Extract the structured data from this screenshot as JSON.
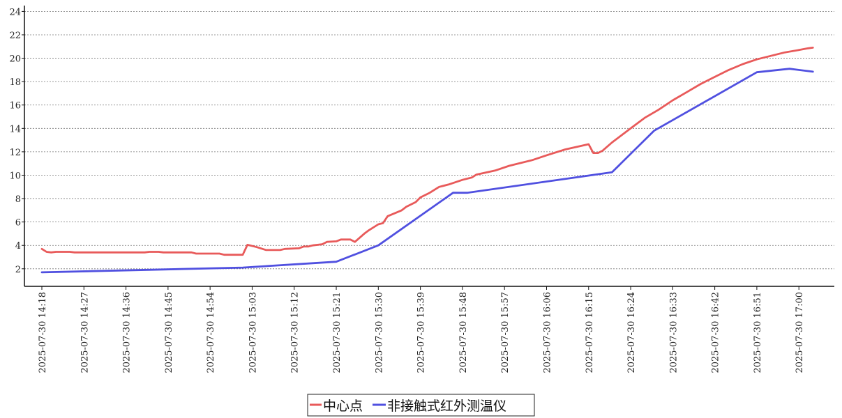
{
  "chart_data": {
    "type": "line",
    "title": "",
    "xlabel": "",
    "ylabel": "",
    "ylim": [
      0.5,
      24.5
    ],
    "y_ticks": [
      2,
      4,
      6,
      8,
      10,
      12,
      14,
      16,
      18,
      20,
      22,
      24
    ],
    "x_range": [
      "2025-07-30 14:18",
      "2025-07-30 17:04"
    ],
    "x_tick_labels": [
      "2025-07-30 14:18",
      "2025-07-30 14:27",
      "2025-07-30 14:36",
      "2025-07-30 14:45",
      "2025-07-30 14:54",
      "2025-07-30 15:03",
      "2025-07-30 15:12",
      "2025-07-30 15:21",
      "2025-07-30 15:30",
      "2025-07-30 15:39",
      "2025-07-30 15:48",
      "2025-07-30 15:57",
      "2025-07-30 16:06",
      "2025-07-30 16:15",
      "2025-07-30 16:24",
      "2025-07-30 16:33",
      "2025-07-30 16:42",
      "2025-07-30 16:51",
      "2025-07-30 17:00"
    ],
    "grid": "horizontal dashed",
    "legend_position": "bottom-center",
    "series": [
      {
        "name": "中心点",
        "color": "#e85a5a",
        "points": [
          [
            "2025-07-30 14:18",
            3.7
          ],
          [
            "2025-07-30 14:19",
            3.45
          ],
          [
            "2025-07-30 14:20",
            3.4
          ],
          [
            "2025-07-30 14:21",
            3.45
          ],
          [
            "2025-07-30 14:24",
            3.45
          ],
          [
            "2025-07-30 14:25",
            3.4
          ],
          [
            "2025-07-30 14:30",
            3.4
          ],
          [
            "2025-07-30 14:40",
            3.4
          ],
          [
            "2025-07-30 14:41",
            3.45
          ],
          [
            "2025-07-30 14:43",
            3.45
          ],
          [
            "2025-07-30 14:44",
            3.4
          ],
          [
            "2025-07-30 14:50",
            3.4
          ],
          [
            "2025-07-30 14:51",
            3.3
          ],
          [
            "2025-07-30 14:56",
            3.3
          ],
          [
            "2025-07-30 14:57",
            3.2
          ],
          [
            "2025-07-30 15:01",
            3.2
          ],
          [
            "2025-07-30 15:02",
            4.05
          ],
          [
            "2025-07-30 15:04",
            3.85
          ],
          [
            "2025-07-30 15:06",
            3.6
          ],
          [
            "2025-07-30 15:09",
            3.6
          ],
          [
            "2025-07-30 15:10",
            3.7
          ],
          [
            "2025-07-30 15:13",
            3.75
          ],
          [
            "2025-07-30 15:14",
            3.9
          ],
          [
            "2025-07-30 15:15",
            3.9
          ],
          [
            "2025-07-30 15:16",
            4.0
          ],
          [
            "2025-07-30 15:18",
            4.1
          ],
          [
            "2025-07-30 15:19",
            4.3
          ],
          [
            "2025-07-30 15:21",
            4.35
          ],
          [
            "2025-07-30 15:22",
            4.5
          ],
          [
            "2025-07-30 15:24",
            4.5
          ],
          [
            "2025-07-30 15:25",
            4.3
          ],
          [
            "2025-07-30 15:27",
            5.0
          ],
          [
            "2025-07-30 15:28",
            5.3
          ],
          [
            "2025-07-30 15:30",
            5.8
          ],
          [
            "2025-07-30 15:31",
            5.9
          ],
          [
            "2025-07-30 15:32",
            6.5
          ],
          [
            "2025-07-30 15:35",
            7.0
          ],
          [
            "2025-07-30 15:36",
            7.3
          ],
          [
            "2025-07-30 15:38",
            7.7
          ],
          [
            "2025-07-30 15:39",
            8.1
          ],
          [
            "2025-07-30 15:41",
            8.5
          ],
          [
            "2025-07-30 15:43",
            9.0
          ],
          [
            "2025-07-30 15:45",
            9.2
          ],
          [
            "2025-07-30 15:48",
            9.6
          ],
          [
            "2025-07-30 15:50",
            9.8
          ],
          [
            "2025-07-30 15:51",
            10.05
          ],
          [
            "2025-07-30 15:55",
            10.4
          ],
          [
            "2025-07-30 15:58",
            10.8
          ],
          [
            "2025-07-30 16:03",
            11.3
          ],
          [
            "2025-07-30 16:06",
            11.7
          ],
          [
            "2025-07-30 16:10",
            12.2
          ],
          [
            "2025-07-30 16:15",
            12.65
          ],
          [
            "2025-07-30 16:16",
            11.9
          ],
          [
            "2025-07-30 16:17",
            11.9
          ],
          [
            "2025-07-30 16:18",
            12.1
          ],
          [
            "2025-07-30 16:20",
            12.8
          ],
          [
            "2025-07-30 16:24",
            14.0
          ],
          [
            "2025-07-30 16:27",
            14.9
          ],
          [
            "2025-07-30 16:30",
            15.6
          ],
          [
            "2025-07-30 16:33",
            16.4
          ],
          [
            "2025-07-30 16:36",
            17.1
          ],
          [
            "2025-07-30 16:39",
            17.8
          ],
          [
            "2025-07-30 16:42",
            18.4
          ],
          [
            "2025-07-30 16:45",
            19.0
          ],
          [
            "2025-07-30 16:48",
            19.5
          ],
          [
            "2025-07-30 16:51",
            19.9
          ],
          [
            "2025-07-30 16:54",
            20.2
          ],
          [
            "2025-07-30 16:57",
            20.5
          ],
          [
            "2025-07-30 17:00",
            20.7
          ],
          [
            "2025-07-30 17:02",
            20.85
          ],
          [
            "2025-07-30 17:03",
            20.9
          ]
        ]
      },
      {
        "name": "非接触式红外测温仪",
        "color": "#5050e0",
        "points": [
          [
            "2025-07-30 14:18",
            1.7
          ],
          [
            "2025-07-30 15:01",
            2.1
          ],
          [
            "2025-07-30 15:21",
            2.6
          ],
          [
            "2025-07-30 15:30",
            4.0
          ],
          [
            "2025-07-30 15:46",
            8.5
          ],
          [
            "2025-07-30 15:49",
            8.5
          ],
          [
            "2025-07-30 16:20",
            10.25
          ],
          [
            "2025-07-30 16:29",
            13.8
          ],
          [
            "2025-07-30 16:51",
            18.8
          ],
          [
            "2025-07-30 16:58",
            19.1
          ],
          [
            "2025-07-30 17:03",
            18.85
          ]
        ]
      }
    ]
  }
}
